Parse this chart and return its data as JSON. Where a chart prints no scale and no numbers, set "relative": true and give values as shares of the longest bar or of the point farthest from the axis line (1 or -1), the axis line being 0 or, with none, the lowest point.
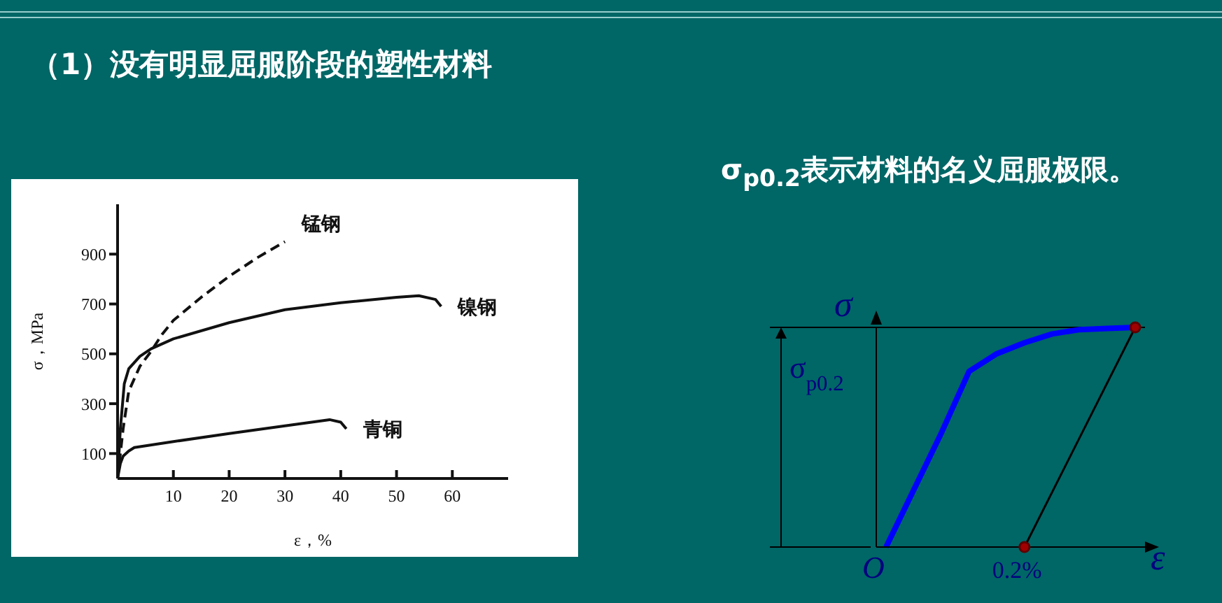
{
  "chart_data": [
    {
      "type": "line",
      "title": "（1）没有明显屈服阶段的塑性材料",
      "xlabel": "ε，%",
      "ylabel": "σ，MPa",
      "xlim": [
        0,
        70
      ],
      "xticks": [
        10,
        20,
        30,
        40,
        50,
        60
      ],
      "ylim": [
        0,
        1100
      ],
      "yticks": [
        100,
        300,
        500,
        700,
        900
      ],
      "grid": false,
      "legend": false,
      "series": [
        {
          "name": "锰钢",
          "color": "#111111",
          "line_style": "dashed",
          "x": [
            0,
            1,
            2,
            4,
            6,
            8,
            10,
            15,
            20,
            25,
            30
          ],
          "values": [
            0,
            200,
            350,
            450,
            510,
            579,
            634,
            727,
            811,
            885,
            950
          ]
        },
        {
          "name": "镍钢",
          "color": "#111111",
          "line_style": "solid",
          "x": [
            0,
            0.5,
            1.2,
            2,
            4,
            6,
            10,
            20,
            30,
            40,
            50,
            54,
            57,
            58
          ],
          "values": [
            0,
            200,
            380,
            440,
            490,
            520,
            560,
            625,
            677,
            705,
            727,
            733,
            718,
            690
          ]
        },
        {
          "name": "青铜",
          "color": "#111111",
          "line_style": "solid",
          "x": [
            0,
            0.5,
            1,
            2,
            3,
            10,
            20,
            30,
            38,
            40,
            41
          ],
          "values": [
            0,
            60,
            90,
            110,
            124,
            148,
            180,
            211,
            236,
            226,
            199
          ]
        }
      ]
    },
    {
      "type": "line",
      "title": "σ$_{p0.2}$表示材料的名义屈服极限。",
      "relative": true,
      "xlabel": "ε",
      "ylabel": "σ",
      "legend": false,
      "categories": [
        null,
        null,
        null,
        null,
        null,
        null,
        null,
        null,
        null,
        null
      ],
      "ref_lines": [
        {
          "axis": "y",
          "value": 1,
          "color": "#000000"
        }
      ],
      "annotations": [
        "σ$_{p0.2}$",
        "O",
        "0.2%"
      ],
      "series": [
        {
          "color": "#0000ff",
          "marker": "none",
          "values": [
            0,
            0.26,
            0.52,
            0.8,
            0.88,
            0.93,
            0.97,
            0.99,
            0.995,
            1
          ]
        },
        {
          "color": "#000000",
          "marker": "circle",
          "values": [
            null,
            null,
            null,
            null,
            null,
            0,
            null,
            null,
            null,
            1
          ]
        }
      ]
    }
  ]
}
